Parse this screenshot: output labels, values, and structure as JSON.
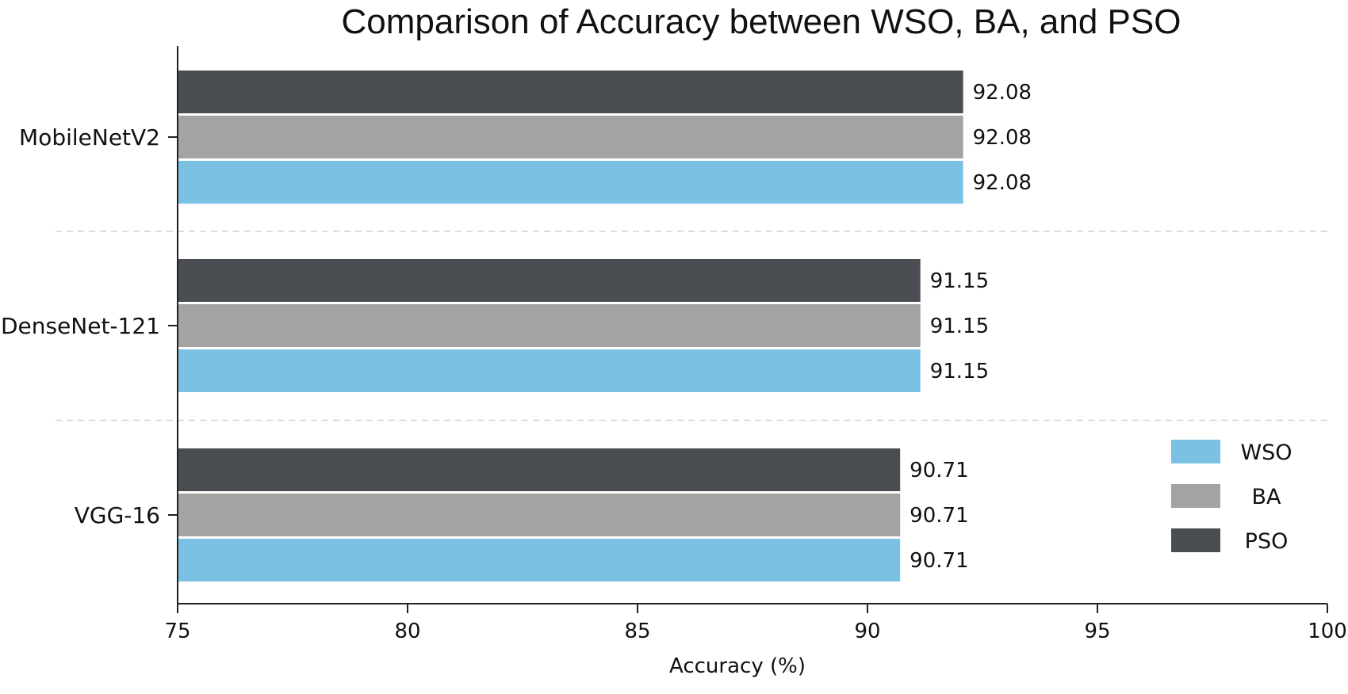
{
  "chart_data": {
    "type": "bar",
    "orientation": "horizontal",
    "title": "Comparison of Accuracy between WSO, BA, and PSO",
    "xlabel": "Accuracy (%)",
    "ylabel": "",
    "categories": [
      "MobileNetV2",
      "DenseNet-121",
      "VGG-16"
    ],
    "series": [
      {
        "name": "PSO",
        "color": "#4a4d52",
        "values": [
          92.08,
          91.15,
          90.71
        ]
      },
      {
        "name": "BA",
        "color": "#a3a3a3",
        "values": [
          92.08,
          91.15,
          90.71
        ]
      },
      {
        "name": "WSO",
        "color": "#7ac1e4",
        "values": [
          92.08,
          91.15,
          90.71
        ]
      }
    ],
    "data_labels": [
      [
        "92.08",
        "92.08",
        "92.08"
      ],
      [
        "91.15",
        "91.15",
        "91.15"
      ],
      [
        "90.71",
        "90.71",
        "90.71"
      ]
    ],
    "legend_order": [
      "WSO",
      "BA",
      "PSO"
    ],
    "xlim": [
      75,
      100
    ],
    "xticks": [
      75,
      80,
      85,
      90,
      95,
      100
    ],
    "xtick_labels": [
      "75",
      "80",
      "85",
      "90",
      "95",
      "100"
    ],
    "grid": "dashed separators between categories",
    "legend_position": "lower-right"
  }
}
